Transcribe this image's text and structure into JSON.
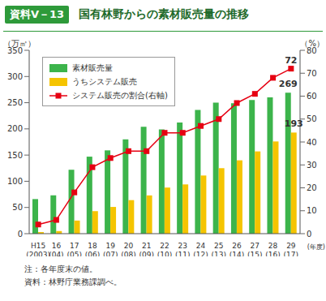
{
  "chart_data": {
    "type": "bar",
    "figure_number": "資料Ⅴ－13",
    "title": "国有林野からの素材販売量の推移",
    "y_label": "（万㎥）",
    "y2_label": "（%）",
    "x_label": "(年度)",
    "notes": [
      "注：各年度末の値。",
      "資料：林野庁業務課調べ。"
    ],
    "categories": [
      "H15\n(2003)",
      "16\n(04)",
      "17\n(05)",
      "18\n(06)",
      "19\n(07)",
      "20\n(08)",
      "21\n(09)",
      "22\n(10)",
      "23\n(11)",
      "24\n(12)",
      "25\n(13)",
      "26\n(14)",
      "27\n(15)",
      "28\n(16)",
      "29\n(17)"
    ],
    "series": [
      {
        "name": "素材販売量",
        "type": "bar",
        "color": "#3cb44b",
        "values": [
          66,
          73,
          122,
          147,
          159,
          180,
          204,
          199,
          212,
          236,
          250,
          249,
          255,
          260,
          269
        ],
        "value_labels": [
          null,
          null,
          null,
          null,
          null,
          null,
          null,
          null,
          null,
          null,
          null,
          null,
          null,
          null,
          "269"
        ]
      },
      {
        "name": "うちシステム販売",
        "type": "bar",
        "color": "#f5c400",
        "values": [
          3,
          5,
          25,
          43,
          51,
          64,
          73,
          88,
          94,
          111,
          125,
          140,
          157,
          176,
          193
        ],
        "value_labels": [
          null,
          null,
          null,
          null,
          null,
          null,
          null,
          null,
          null,
          null,
          null,
          null,
          null,
          null,
          "193"
        ]
      },
      {
        "name": "システム販売の割合(右軸)",
        "type": "line",
        "axis": "y2",
        "color": "#e60012",
        "marker": "square",
        "values": [
          4,
          6,
          18,
          29,
          33,
          36,
          36,
          44,
          44,
          47,
          50,
          57,
          61,
          68,
          72
        ],
        "value_labels": [
          null,
          null,
          null,
          null,
          null,
          null,
          null,
          null,
          null,
          null,
          null,
          null,
          null,
          null,
          "72"
        ]
      }
    ],
    "ylim": [
      0,
      350
    ],
    "yticks": [
      0,
      50,
      100,
      150,
      200,
      250,
      300,
      350
    ],
    "y2lim": [
      0,
      80
    ],
    "y2ticks": [
      0,
      10,
      20,
      30,
      40,
      50,
      60,
      70,
      80
    ],
    "grid": false,
    "legend": "upper left"
  }
}
